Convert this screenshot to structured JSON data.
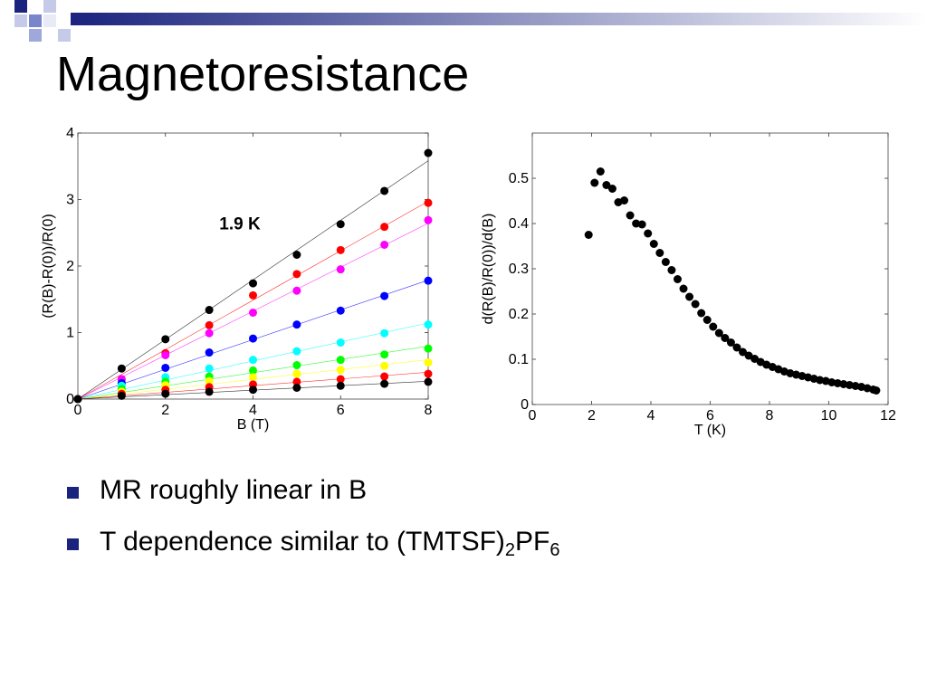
{
  "slide": {
    "title": "Magnetoresistance",
    "colors": {
      "accent": "#1a237e",
      "bullet": "#1a237e"
    }
  },
  "bullets": [
    {
      "text": "MR roughly linear in B"
    },
    {
      "text": "T dependence similar to (TMTSF)",
      "sub1": "2",
      "mid": "PF",
      "sub2": "6"
    }
  ],
  "chart_data": [
    {
      "type": "scatter",
      "title": "",
      "annotation": "1.9 K",
      "xlabel": "B (T)",
      "ylabel": "(R(B)-R(0))/R(0)",
      "xlim": [
        0,
        8
      ],
      "ylim": [
        0,
        4
      ],
      "xticks": [
        0,
        2,
        4,
        6,
        8
      ],
      "yticks": [
        0,
        1,
        2,
        3,
        4
      ],
      "grid": false,
      "x": [
        0,
        1,
        2,
        3,
        4,
        5,
        6,
        7,
        8
      ],
      "series": [
        {
          "color": "#000000",
          "values": [
            0,
            0.46,
            0.9,
            1.34,
            1.74,
            2.17,
            2.63,
            3.13,
            3.7
          ]
        },
        {
          "color": "#ff0000",
          "values": [
            0,
            0.3,
            0.69,
            1.11,
            1.56,
            1.88,
            2.24,
            2.59,
            2.95
          ]
        },
        {
          "color": "#ff00ff",
          "values": [
            0,
            0.3,
            0.66,
            0.99,
            1.3,
            1.63,
            1.95,
            2.32,
            2.69
          ]
        },
        {
          "color": "#0000ff",
          "values": [
            0,
            0.24,
            0.47,
            0.7,
            0.91,
            1.12,
            1.33,
            1.55,
            1.78
          ]
        },
        {
          "color": "#00ffff",
          "values": [
            0,
            0.2,
            0.33,
            0.46,
            0.59,
            0.72,
            0.85,
            0.99,
            1.12
          ]
        },
        {
          "color": "#00ff00",
          "values": [
            0,
            0.15,
            0.26,
            0.34,
            0.43,
            0.51,
            0.59,
            0.67,
            0.76
          ]
        },
        {
          "color": "#ffff00",
          "values": [
            0,
            0.11,
            0.21,
            0.27,
            0.33,
            0.38,
            0.44,
            0.5,
            0.55
          ]
        },
        {
          "color": "#ff0000",
          "values": [
            0,
            0.08,
            0.14,
            0.18,
            0.22,
            0.26,
            0.3,
            0.34,
            0.38
          ]
        },
        {
          "color": "#000000",
          "values": [
            0,
            0.05,
            0.08,
            0.11,
            0.14,
            0.17,
            0.2,
            0.23,
            0.26
          ]
        }
      ]
    },
    {
      "type": "scatter",
      "title": "",
      "xlabel": "T (K)",
      "ylabel": "d(R(B)/R(0))/d(B)",
      "xlim": [
        0,
        12
      ],
      "ylim": [
        0,
        0.6
      ],
      "xticks": [
        0,
        2,
        4,
        6,
        8,
        10,
        12
      ],
      "yticks": [
        0,
        0.1,
        0.2,
        0.3,
        0.4,
        0.5
      ],
      "grid": false,
      "series": [
        {
          "color": "#000000",
          "x": [
            1.9,
            2.1,
            2.3,
            2.5,
            2.7,
            2.9,
            3.1,
            3.3,
            3.5,
            3.7,
            3.9,
            4.1,
            4.3,
            4.5,
            4.7,
            4.9,
            5.1,
            5.3,
            5.5,
            5.7,
            5.9,
            6.1,
            6.3,
            6.5,
            6.7,
            6.9,
            7.1,
            7.3,
            7.5,
            7.7,
            7.9,
            8.1,
            8.3,
            8.5,
            8.7,
            8.9,
            9.1,
            9.3,
            9.5,
            9.7,
            9.9,
            10.1,
            10.3,
            10.5,
            10.7,
            10.9,
            11.1,
            11.3,
            11.5,
            11.6
          ],
          "values": [
            0.375,
            0.49,
            0.515,
            0.485,
            0.477,
            0.447,
            0.451,
            0.418,
            0.4,
            0.398,
            0.378,
            0.355,
            0.335,
            0.315,
            0.297,
            0.277,
            0.256,
            0.238,
            0.222,
            0.202,
            0.187,
            0.172,
            0.158,
            0.147,
            0.137,
            0.126,
            0.116,
            0.108,
            0.101,
            0.094,
            0.088,
            0.083,
            0.078,
            0.073,
            0.069,
            0.066,
            0.063,
            0.06,
            0.057,
            0.054,
            0.052,
            0.049,
            0.047,
            0.045,
            0.043,
            0.041,
            0.039,
            0.036,
            0.033,
            0.031
          ]
        }
      ]
    }
  ]
}
